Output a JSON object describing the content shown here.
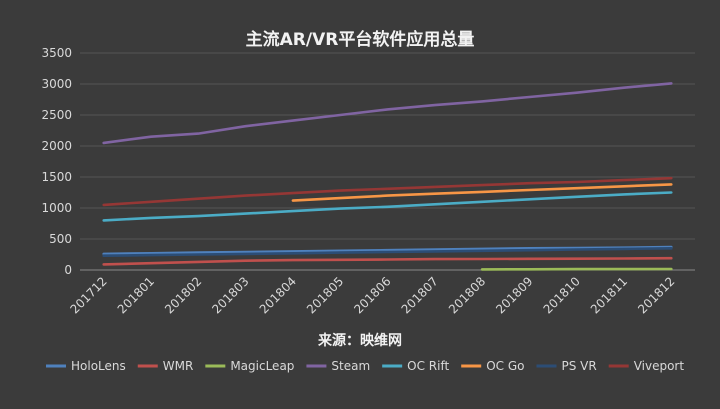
{
  "chart_data": {
    "type": "line",
    "title": "主流AR/VR平台软件应用总量",
    "source_note": "来源：映维网",
    "ylim": [
      0,
      3500
    ],
    "yticks": [
      0,
      500,
      1000,
      1500,
      2000,
      2500,
      3000,
      3500
    ],
    "categories": [
      "201712",
      "201801",
      "201802",
      "201803",
      "201804",
      "201805",
      "201806",
      "201807",
      "201808",
      "201809",
      "201810",
      "201811",
      "201812"
    ],
    "grid": true,
    "legend_position": "bottom",
    "series": [
      {
        "name": "HoloLens",
        "color": "#4f81bd",
        "values": [
          260,
          270,
          280,
          290,
          300,
          310,
          320,
          330,
          340,
          350,
          355,
          360,
          370
        ]
      },
      {
        "name": "WMR",
        "color": "#c0504d",
        "values": [
          90,
          110,
          130,
          150,
          160,
          165,
          170,
          175,
          178,
          180,
          183,
          185,
          190
        ]
      },
      {
        "name": "MagicLeap",
        "color": "#9bbb59",
        "values": [
          null,
          null,
          null,
          null,
          null,
          null,
          null,
          null,
          10,
          12,
          14,
          15,
          16
        ]
      },
      {
        "name": "Steam",
        "color": "#8064a2",
        "values": [
          2050,
          2150,
          2200,
          2320,
          2410,
          2500,
          2590,
          2660,
          2720,
          2790,
          2860,
          2940,
          3010
        ]
      },
      {
        "name": "OC Rift",
        "color": "#4bacc6",
        "values": [
          800,
          840,
          870,
          910,
          950,
          990,
          1020,
          1060,
          1100,
          1140,
          1180,
          1220,
          1250
        ]
      },
      {
        "name": "OC Go",
        "color": "#f79646",
        "values": [
          null,
          null,
          null,
          null,
          1120,
          1160,
          1200,
          1230,
          1260,
          1290,
          1320,
          1350,
          1380
        ]
      },
      {
        "name": "PS VR",
        "color": "#2c4d75",
        "values": [
          230,
          240,
          250,
          260,
          270,
          280,
          290,
          300,
          310,
          320,
          330,
          340,
          350
        ]
      },
      {
        "name": "Viveport",
        "color": "#953735",
        "values": [
          1050,
          1100,
          1150,
          1200,
          1240,
          1280,
          1310,
          1340,
          1370,
          1400,
          1420,
          1450,
          1480
        ]
      }
    ]
  }
}
